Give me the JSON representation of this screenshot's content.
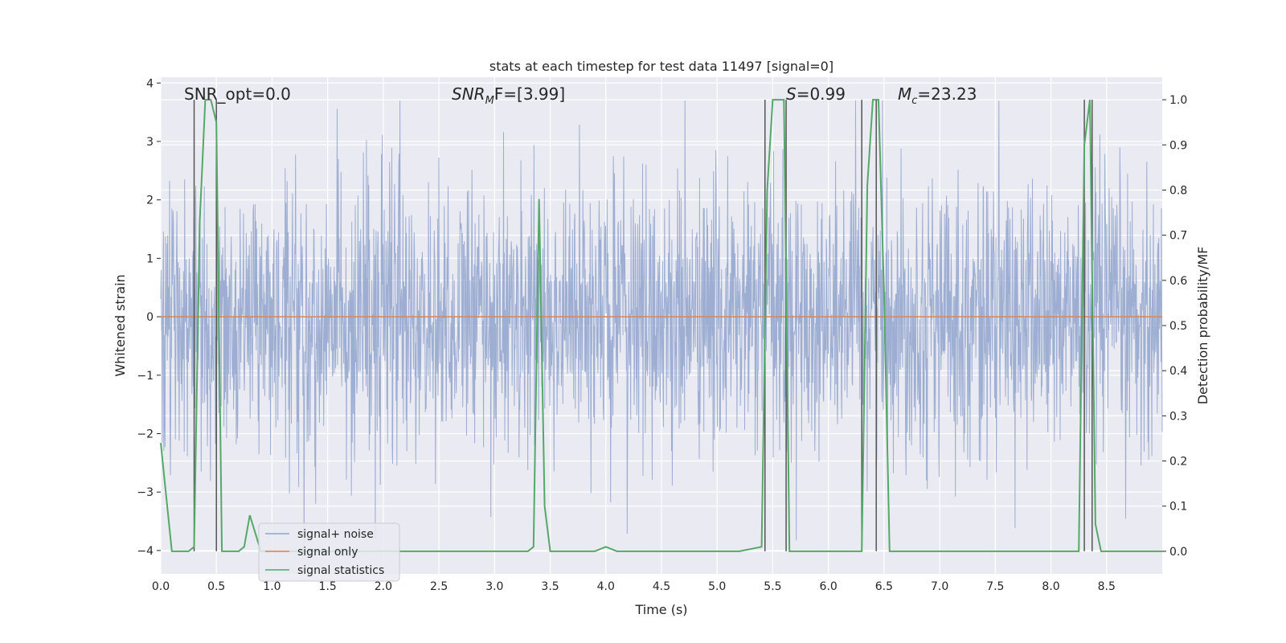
{
  "chart_data": {
    "type": "line",
    "title": "stats at each timestep for test data 11497 [signal=0]",
    "xlabel": "Time (s)",
    "ylabel_left": "Whitened strain",
    "ylabel_right": "Detection probability/MF",
    "xlim": [
      0.0,
      9.0
    ],
    "ylim_left": [
      -4.4,
      4.1
    ],
    "ylim_right": [
      -0.05,
      1.05
    ],
    "x_ticks": [
      "0.0",
      "0.5",
      "1.0",
      "1.5",
      "2.0",
      "2.5",
      "3.0",
      "3.5",
      "4.0",
      "4.5",
      "5.0",
      "5.5",
      "6.0",
      "6.5",
      "7.0",
      "7.5",
      "8.0",
      "8.5"
    ],
    "x_tick_values": [
      0.0,
      0.5,
      1.0,
      1.5,
      2.0,
      2.5,
      3.0,
      3.5,
      4.0,
      4.5,
      5.0,
      5.5,
      6.0,
      6.5,
      7.0,
      7.5,
      8.0,
      8.5
    ],
    "y_left_ticks": [
      "4",
      "3",
      "2",
      "1",
      "0",
      "−1",
      "−2",
      "−3",
      "−4"
    ],
    "y_left_tick_values": [
      4,
      3,
      2,
      1,
      0,
      -1,
      -2,
      -3,
      -4
    ],
    "y_right_ticks": [
      "1.0",
      "0.9",
      "0.8",
      "0.7",
      "0.6",
      "0.5",
      "0.4",
      "0.3",
      "0.2",
      "0.1",
      "0.0"
    ],
    "y_right_tick_values": [
      1.0,
      0.9,
      0.8,
      0.7,
      0.6,
      0.5,
      0.4,
      0.3,
      0.2,
      0.1,
      0.0
    ],
    "grid": true,
    "legend_position": "lower-left",
    "annotations": {
      "snr_opt": "SNR_opt=0.0",
      "snr_mf_prefix": "SNR",
      "snr_mf_sub": "M",
      "snr_mf_suffix": "F=[3.99]",
      "s_name": "S",
      "s_value": "=0.99",
      "mc_name": "M",
      "mc_sub": "c",
      "mc_value": "=23.23"
    },
    "series": [
      {
        "name": "signal+ noise",
        "color": "#8fa3cc",
        "style": "dense noise, amplitude envelope approx ±2.0 with peaks up to 3.7 and down to -3.9"
      },
      {
        "name": "signal only",
        "color": "#dd8452",
        "x": [
          0.0,
          9.0
        ],
        "y": [
          0.0,
          0.0
        ]
      },
      {
        "name": "signal statistics",
        "color": "#55a868",
        "axis": "right",
        "x": [
          0.0,
          0.05,
          0.1,
          0.2,
          0.25,
          0.3,
          0.35,
          0.4,
          0.45,
          0.5,
          0.55,
          0.6,
          0.7,
          0.75,
          0.8,
          0.85,
          0.9,
          1.0,
          1.1,
          2.0,
          3.0,
          3.3,
          3.35,
          3.4,
          3.45,
          3.5,
          3.6,
          3.7,
          3.8,
          3.9,
          4.0,
          4.1,
          4.2,
          4.4,
          4.6,
          4.8,
          5.0,
          5.2,
          5.4,
          5.45,
          5.5,
          5.6,
          5.65,
          5.7,
          5.8,
          6.0,
          6.3,
          6.35,
          6.4,
          6.45,
          6.5,
          6.55,
          6.6,
          7.0,
          8.0,
          8.25,
          8.3,
          8.35,
          8.4,
          8.45,
          8.5,
          9.0
        ],
        "y": [
          0.24,
          0.12,
          0.0,
          0.0,
          0.0,
          0.01,
          0.73,
          1.0,
          1.0,
          0.95,
          0.0,
          0.0,
          0.0,
          0.01,
          0.08,
          0.04,
          0.0,
          0.0,
          0.0,
          0.0,
          0.0,
          0.0,
          0.01,
          0.78,
          0.1,
          0.0,
          0.0,
          0.0,
          0.0,
          0.0,
          0.01,
          0.0,
          0.0,
          0.0,
          0.0,
          0.0,
          0.0,
          0.0,
          0.01,
          0.8,
          1.0,
          1.0,
          0.0,
          0.0,
          0.0,
          0.0,
          0.0,
          0.81,
          1.0,
          1.0,
          0.57,
          0.0,
          0.0,
          0.0,
          0.0,
          0.0,
          0.9,
          1.0,
          0.06,
          0.0,
          0.0,
          0.0
        ]
      }
    ],
    "vertical_lines": [
      0.3,
      0.5,
      5.43,
      5.62,
      6.3,
      6.43,
      8.3,
      8.37
    ]
  }
}
